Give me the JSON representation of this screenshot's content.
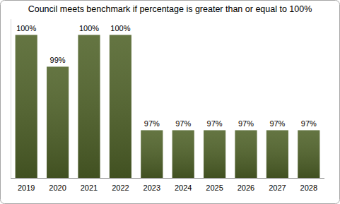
{
  "chart_data": {
    "type": "bar",
    "title": "Council meets benchmark if percentage is greater than or equal to 100%",
    "categories": [
      "2019",
      "2020",
      "2021",
      "2022",
      "2023",
      "2024",
      "2025",
      "2026",
      "2027",
      "2028"
    ],
    "values": [
      100,
      99,
      100,
      100,
      97,
      97,
      97,
      97,
      97,
      97
    ],
    "value_labels": [
      "100%",
      "99%",
      "100%",
      "100%",
      "97%",
      "97%",
      "97%",
      "97%",
      "97%",
      "97%"
    ],
    "color": "#4f6228",
    "ylim": [
      95.5,
      100.5
    ],
    "data_labels": true,
    "tick_labels": "x",
    "grid": false
  }
}
